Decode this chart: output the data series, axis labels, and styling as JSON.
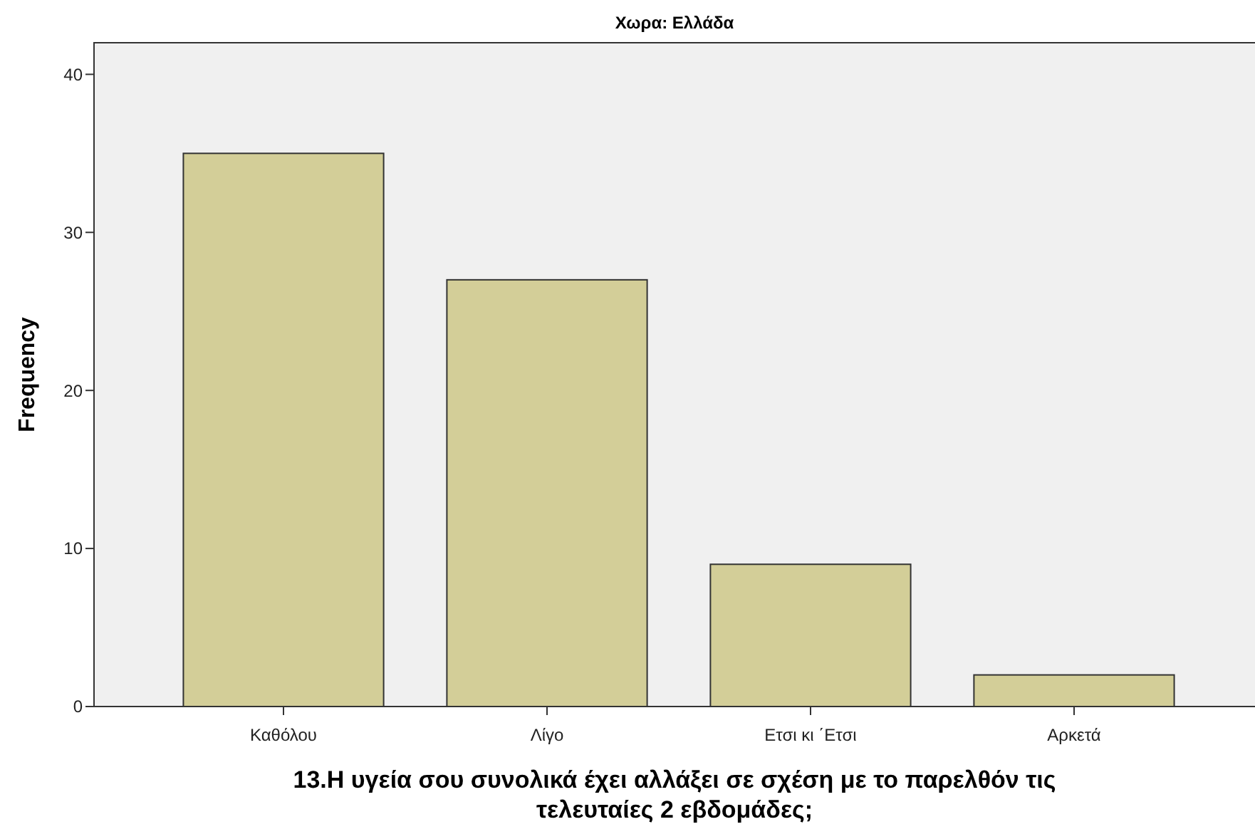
{
  "chart_data": {
    "type": "bar",
    "title": "Χωρα: Ελλάδα",
    "xlabel": "13.Η υγεία σου συνολικά έχει αλλάξει σε σχέση με το παρελθόν τις τελευταίες 2 εβδομάδες;",
    "ylabel": "Frequency",
    "categories": [
      "Καθόλου",
      "Λίγο",
      "Ετσι κι ΄Ετσι",
      "Αρκετά"
    ],
    "values": [
      35,
      27,
      9,
      2
    ],
    "color": "#d3ce98",
    "ylim": [
      0,
      42
    ],
    "yticks": [
      0,
      10,
      20,
      30,
      40
    ],
    "grid": false
  }
}
